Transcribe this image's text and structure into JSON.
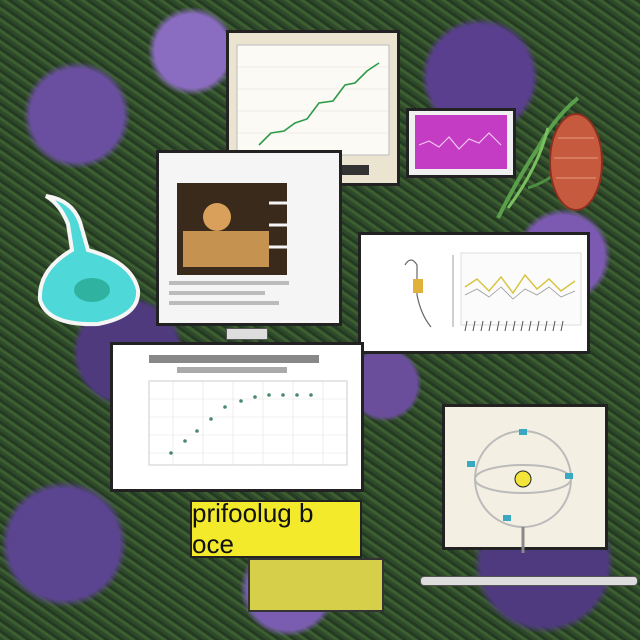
{
  "labels": {
    "yellow_sign": "prifoolug b oce"
  },
  "colors": {
    "flask": "#4fd8d8",
    "magenta_panel": "#c43cc4",
    "sign": "#f2ea2a"
  }
}
